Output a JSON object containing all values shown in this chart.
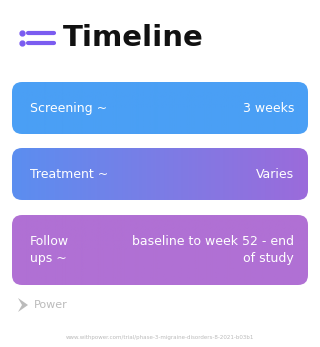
{
  "title": "Timeline",
  "title_icon_color": "#7b5cf0",
  "background_color": "#ffffff",
  "rows": [
    {
      "left_label": "Screening ~",
      "right_label": "3 weeks",
      "color_start": "#4a9ff5",
      "color_end": "#4a9ff5"
    },
    {
      "left_label": "Treatment ~",
      "right_label": "Varies",
      "color_start": "#5b8ef0",
      "color_end": "#9b6bdb"
    },
    {
      "left_label": "Follow\nups ~",
      "right_label": "baseline to week 52 - end\nof study",
      "color_start": "#b070d4",
      "color_end": "#b070d4"
    }
  ],
  "watermark_text": "Power",
  "url": "www.withpower.com/trial/phase-3-migraine-disorders-8-2021-b03b1",
  "fig_width": 3.2,
  "fig_height": 3.47,
  "dpi": 100
}
